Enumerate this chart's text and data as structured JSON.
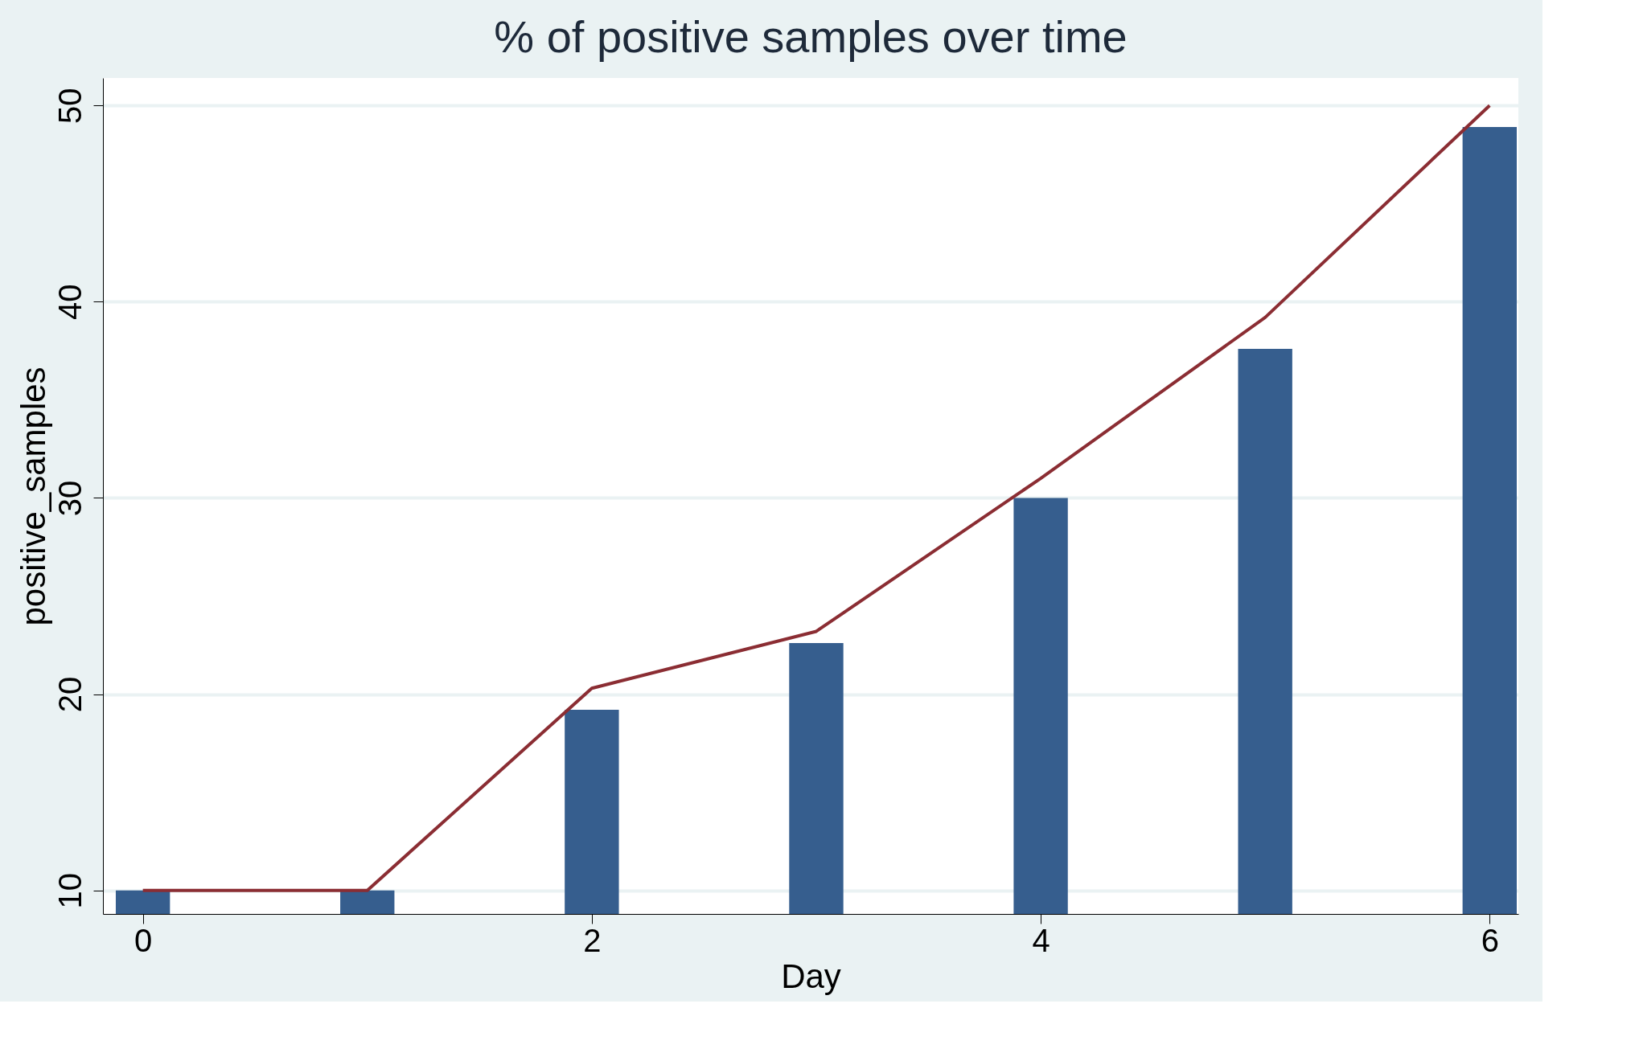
{
  "chart_data": {
    "type": "bar",
    "title": "% of positive samples over time",
    "xlabel": "Day",
    "ylabel": "positive_samples",
    "x": [
      0,
      1,
      2,
      3,
      4,
      5,
      6
    ],
    "series": [
      {
        "color": "#365e8e",
        "values": [
          10,
          10,
          19.2,
          22.6,
          30,
          37.6,
          48.9
        ]
      },
      {
        "type": "line",
        "color": "#8b2d33",
        "values": [
          10,
          10,
          20.3,
          23.2,
          31,
          39.2,
          50
        ]
      }
    ],
    "xlim": [
      -0.16,
      6.11
    ],
    "xticks": [
      0,
      2,
      4,
      6
    ],
    "ylim": [
      8.8,
      51.4
    ],
    "yticks": [
      10,
      20,
      30,
      40,
      50
    ],
    "grid": "y"
  }
}
